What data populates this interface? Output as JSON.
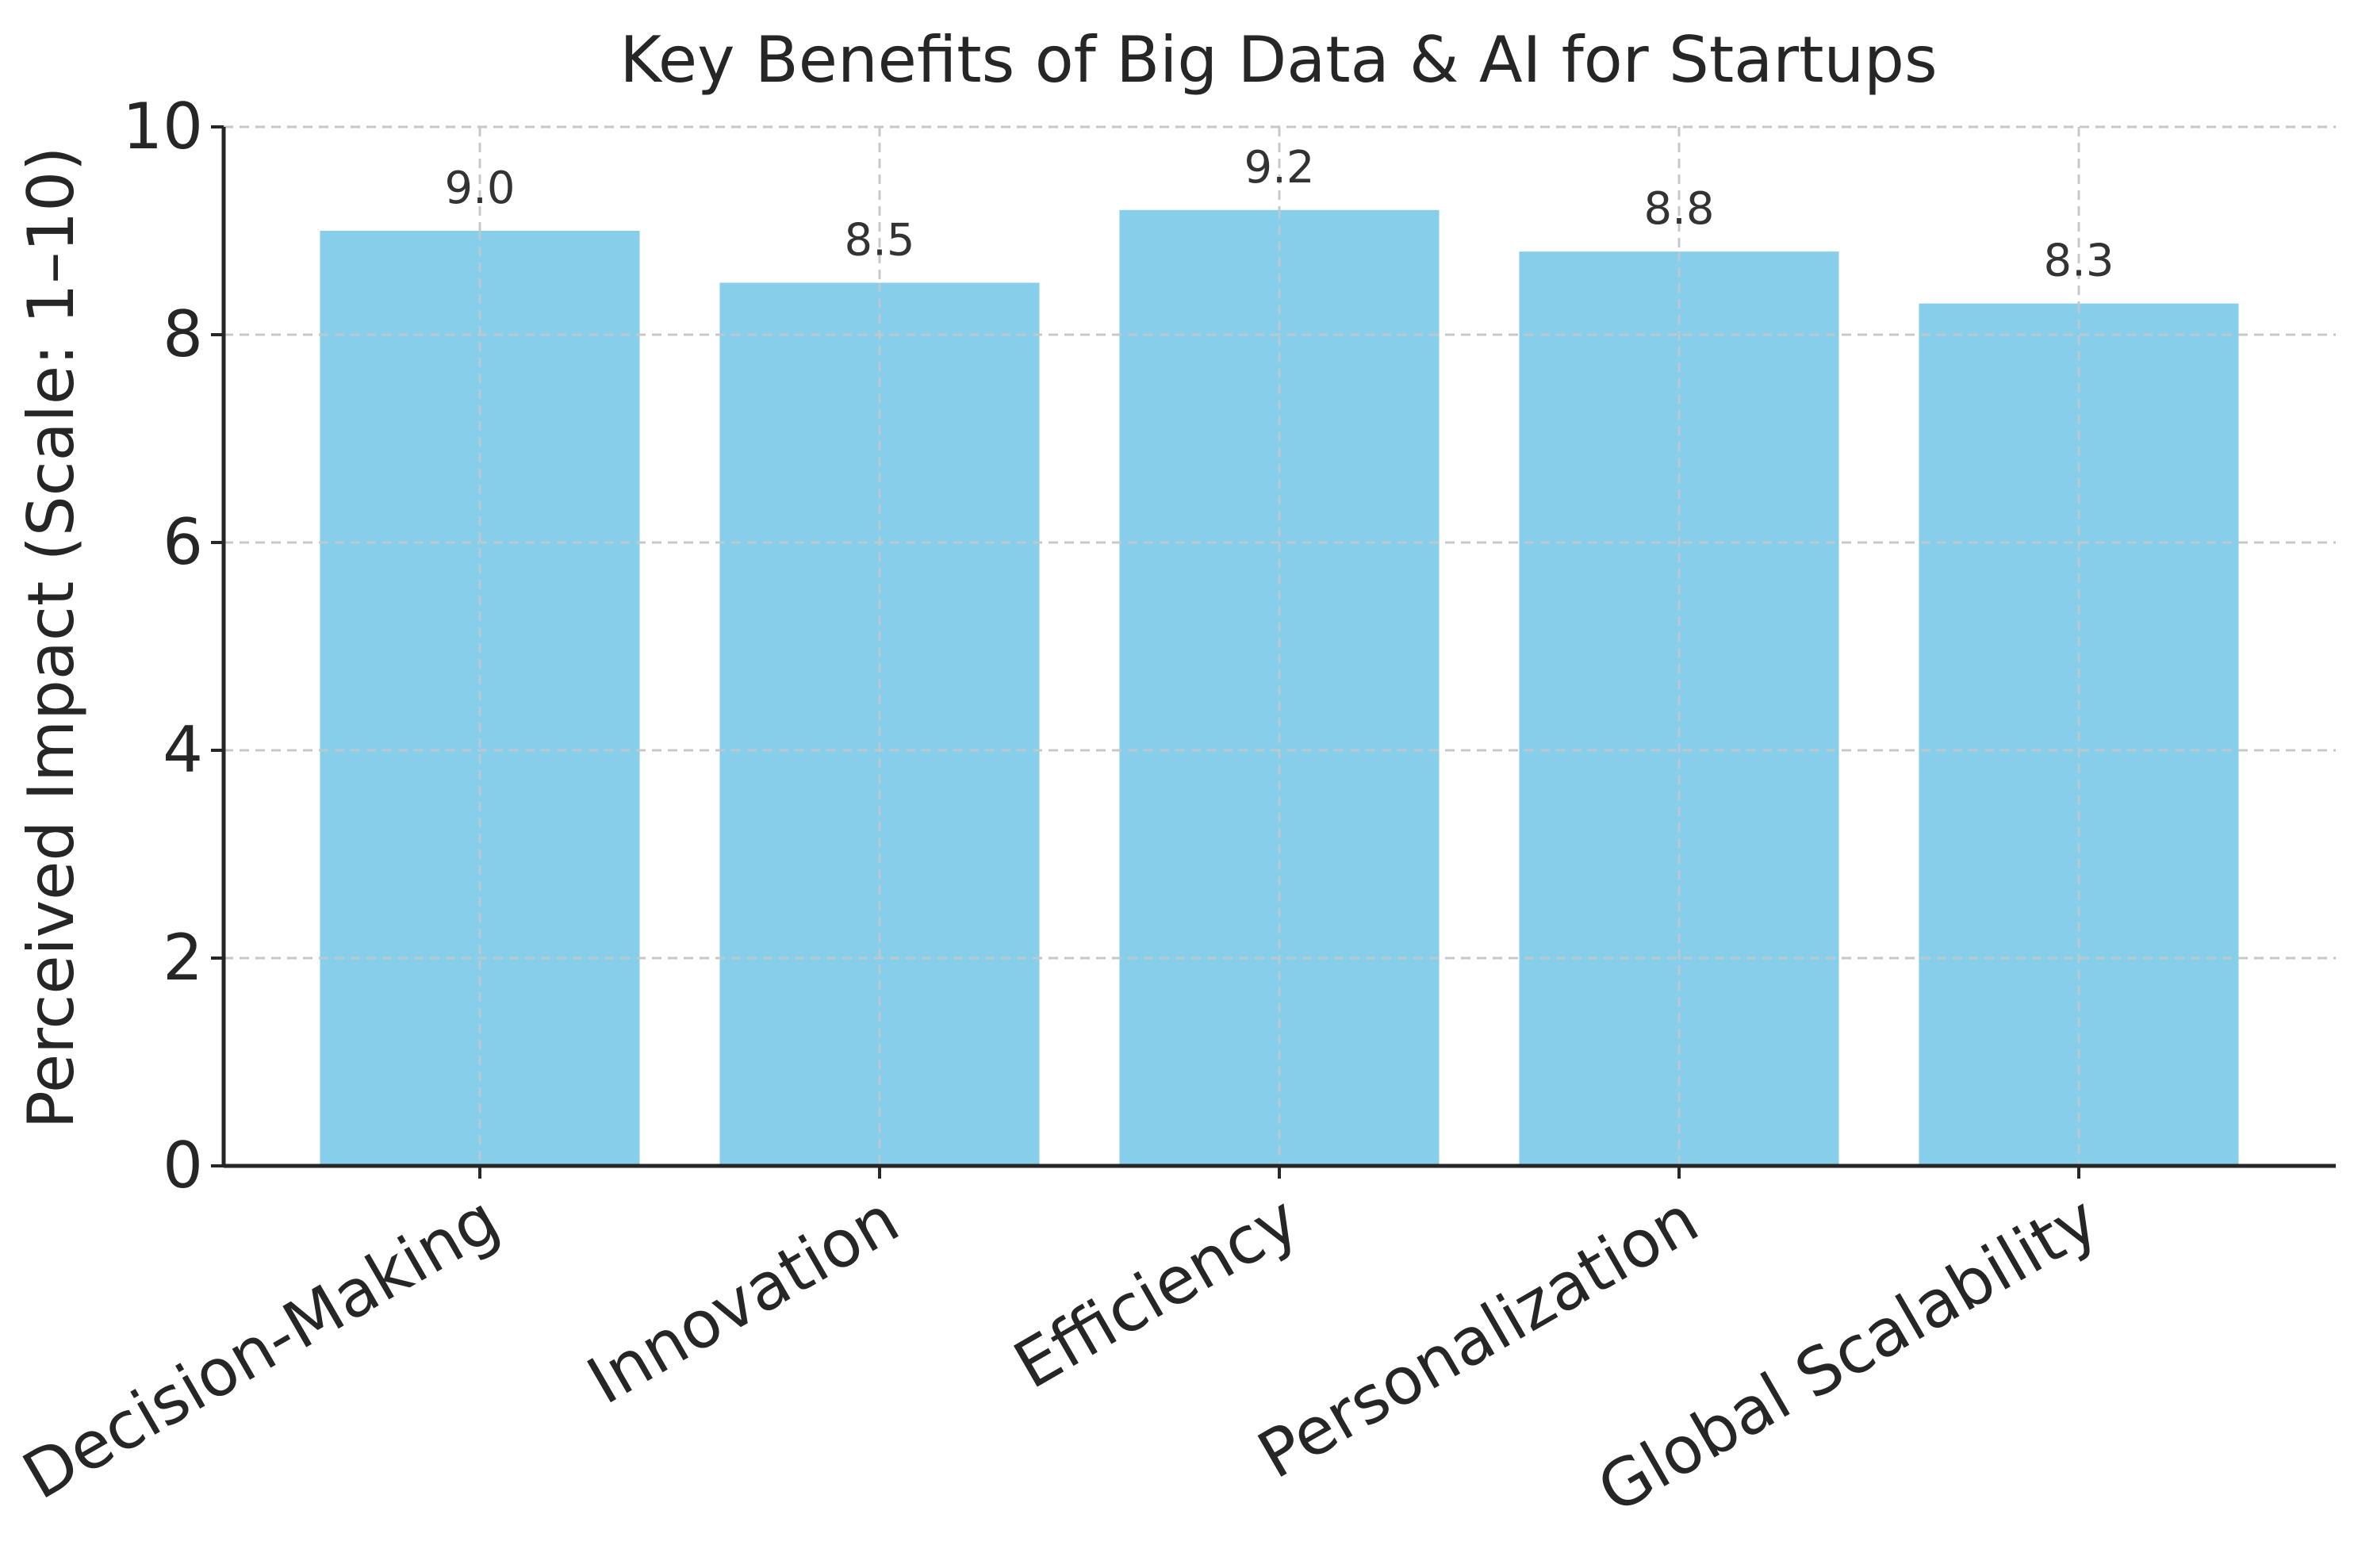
{
  "colors": {
    "bar": "#87ceeb",
    "text": "#262626",
    "axis": "#262626",
    "grid": "#c8c8c8",
    "data_label": "#333333"
  },
  "chart_data": {
    "type": "bar",
    "title": "Key Benefits of Big Data & AI for Startups",
    "xlabel": "",
    "ylabel": "Perceived Impact (Scale: 1–10)",
    "categories": [
      "Decision-Making",
      "Innovation",
      "Efficiency",
      "Personalization",
      "Global Scalability"
    ],
    "values": [
      9.0,
      8.5,
      9.2,
      8.8,
      8.3
    ],
    "data_labels": [
      "9.0",
      "8.5",
      "9.2",
      "8.8",
      "8.3"
    ],
    "ylim": [
      0,
      10
    ],
    "yticks": [
      0,
      2,
      4,
      6,
      8,
      10
    ],
    "ytick_labels": [
      "0",
      "2",
      "4",
      "6",
      "8",
      "10"
    ],
    "grid": true,
    "grid_style": "dashed",
    "legend": "none"
  }
}
